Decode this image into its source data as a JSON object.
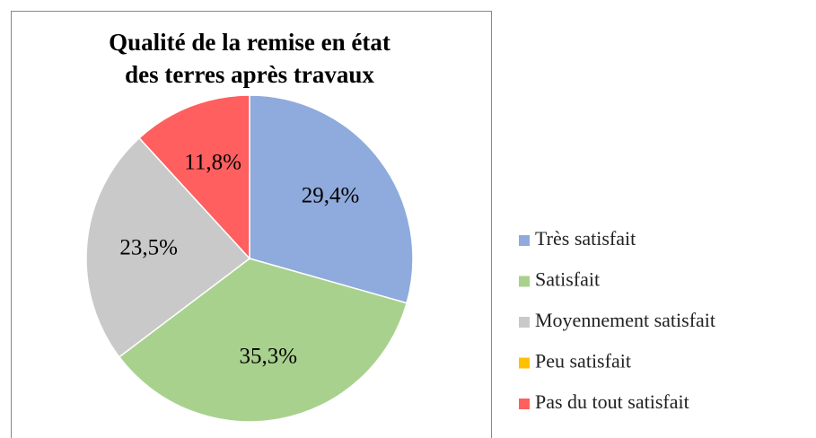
{
  "chart_data": {
    "type": "pie",
    "title": [
      "Qualité de la remise en état",
      "des terres après travaux"
    ],
    "categories": [
      "Très satisfait",
      "Satisfait",
      "Moyennement satisfait",
      "Peu satisfait",
      "Pas du tout satisfait"
    ],
    "values": [
      29.4,
      35.3,
      23.5,
      0,
      11.8
    ],
    "value_labels": [
      "29,4%",
      "35,3%",
      "23,5%",
      null,
      "11,8%"
    ],
    "colors": [
      "#8faadc",
      "#a9d18e",
      "#c9c9c9",
      "#ffc000",
      "#ff5f5f"
    ],
    "legend": "right"
  }
}
